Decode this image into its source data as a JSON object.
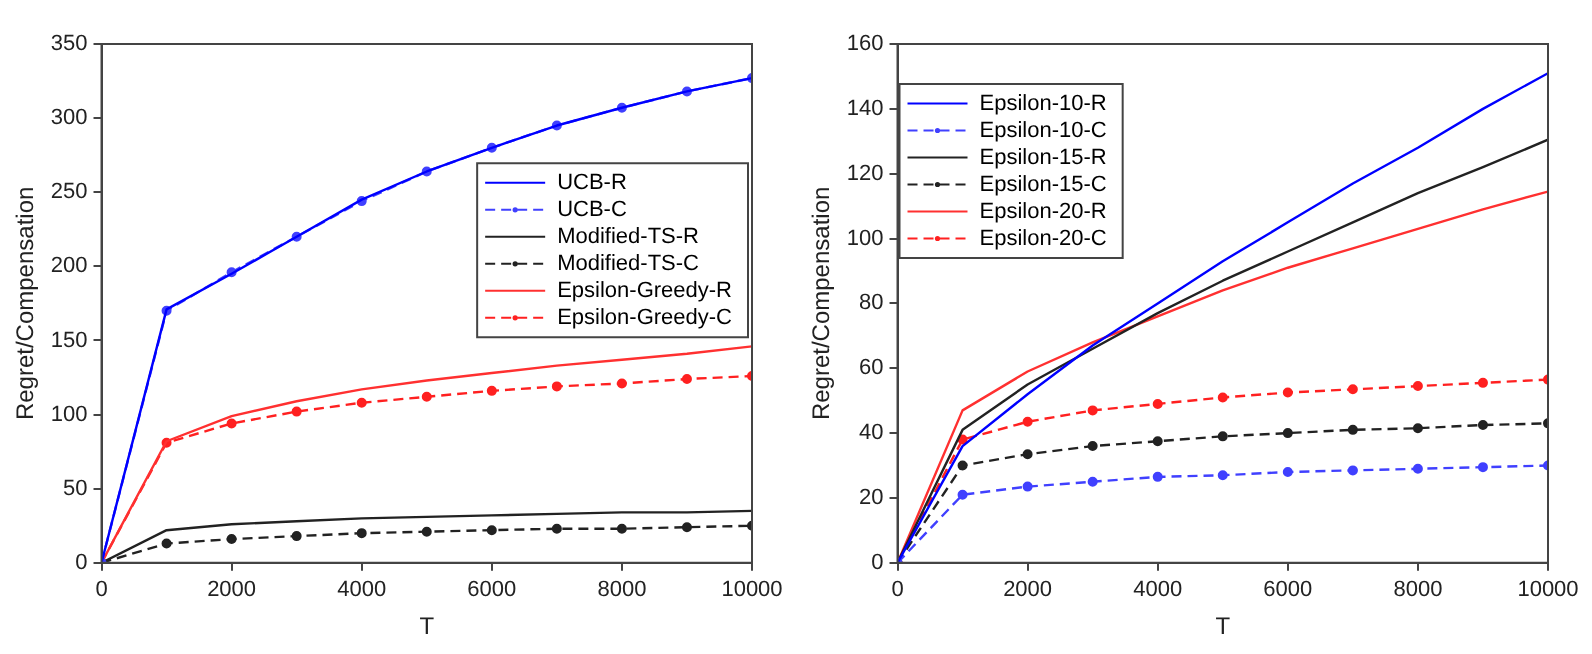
{
  "chart_data": [
    {
      "type": "line",
      "xlabel": "T",
      "ylabel": "Regret/Compensation",
      "x": [
        0,
        1000,
        2000,
        3000,
        4000,
        5000,
        6000,
        7000,
        8000,
        9000,
        10000
      ],
      "xlim": [
        0,
        10000
      ],
      "xticks": [
        0,
        2000,
        4000,
        6000,
        8000,
        10000
      ],
      "ylim": [
        0,
        350
      ],
      "yticks": [
        0,
        50,
        100,
        150,
        200,
        250,
        300,
        350
      ],
      "grid": false,
      "legend": "right",
      "series": [
        {
          "name": "UCB-R",
          "color": "#0000ff",
          "line_style": "solid",
          "marker": "none",
          "values": [
            0,
            171,
            195,
            220,
            245,
            264,
            280,
            295,
            307,
            318,
            327
          ]
        },
        {
          "name": "UCB-C",
          "color": "#4040ff",
          "line_style": "dashed",
          "marker": "circle",
          "values": [
            0,
            170,
            196,
            220,
            244,
            264,
            280,
            295,
            307,
            318,
            327
          ]
        },
        {
          "name": "Modified-TS-R",
          "color": "#222222",
          "line_style": "solid",
          "marker": "none",
          "values": [
            0,
            22,
            26,
            28,
            30,
            31,
            32,
            33,
            34,
            34,
            35
          ]
        },
        {
          "name": "Modified-TS-C",
          "color": "#222222",
          "line_style": "dashed",
          "marker": "circle",
          "values": [
            0,
            13,
            16,
            18,
            20,
            21,
            22,
            23,
            23,
            24,
            25
          ]
        },
        {
          "name": "Epsilon-Greedy-R",
          "color": "#ff3030",
          "line_style": "solid",
          "marker": "none",
          "values": [
            0,
            82,
            99,
            109,
            117,
            123,
            128,
            133,
            137,
            141,
            146
          ]
        },
        {
          "name": "Epsilon-Greedy-C",
          "color": "#ff2020",
          "line_style": "dashed",
          "marker": "circle",
          "values": [
            0,
            81,
            94,
            102,
            108,
            112,
            116,
            119,
            121,
            124,
            126
          ]
        }
      ]
    },
    {
      "type": "line",
      "xlabel": "T",
      "ylabel": "Regret/Compensation",
      "x": [
        0,
        1000,
        2000,
        3000,
        4000,
        5000,
        6000,
        7000,
        8000,
        9000,
        10000
      ],
      "xlim": [
        0,
        10000
      ],
      "xticks": [
        0,
        2000,
        4000,
        6000,
        8000,
        10000
      ],
      "ylim": [
        0,
        160
      ],
      "yticks": [
        0,
        20,
        40,
        60,
        80,
        100,
        120,
        140,
        160
      ],
      "grid": false,
      "legend": "top left",
      "series": [
        {
          "name": "Epsilon-10-R",
          "color": "#0000ff",
          "line_style": "solid",
          "marker": "none",
          "values": [
            0,
            36,
            52,
            67,
            80,
            93,
            105,
            117,
            128,
            140,
            151
          ]
        },
        {
          "name": "Epsilon-10-C",
          "color": "#4040ff",
          "line_style": "dashed",
          "marker": "circle",
          "values": [
            0,
            21,
            23.5,
            25,
            26.5,
            27,
            28,
            28.5,
            29,
            29.5,
            30
          ]
        },
        {
          "name": "Epsilon-15-R",
          "color": "#222222",
          "line_style": "solid",
          "marker": "none",
          "values": [
            0,
            41,
            55,
            66,
            77,
            87,
            96,
            105,
            114,
            122,
            130.5
          ]
        },
        {
          "name": "Epsilon-15-C",
          "color": "#222222",
          "line_style": "dashed",
          "marker": "circle",
          "values": [
            0,
            30,
            33.5,
            36,
            37.5,
            39,
            40,
            41,
            41.5,
            42.5,
            43
          ]
        },
        {
          "name": "Epsilon-20-R",
          "color": "#ff3030",
          "line_style": "solid",
          "marker": "none",
          "values": [
            0,
            47,
            59,
            68,
            76,
            84,
            91,
            97,
            103,
            109,
            114.5
          ]
        },
        {
          "name": "Epsilon-20-C",
          "color": "#ff2020",
          "line_style": "dashed",
          "marker": "circle",
          "values": [
            0,
            38,
            43.5,
            47,
            49,
            51,
            52.5,
            53.5,
            54.5,
            55.5,
            56.5
          ]
        }
      ]
    }
  ]
}
